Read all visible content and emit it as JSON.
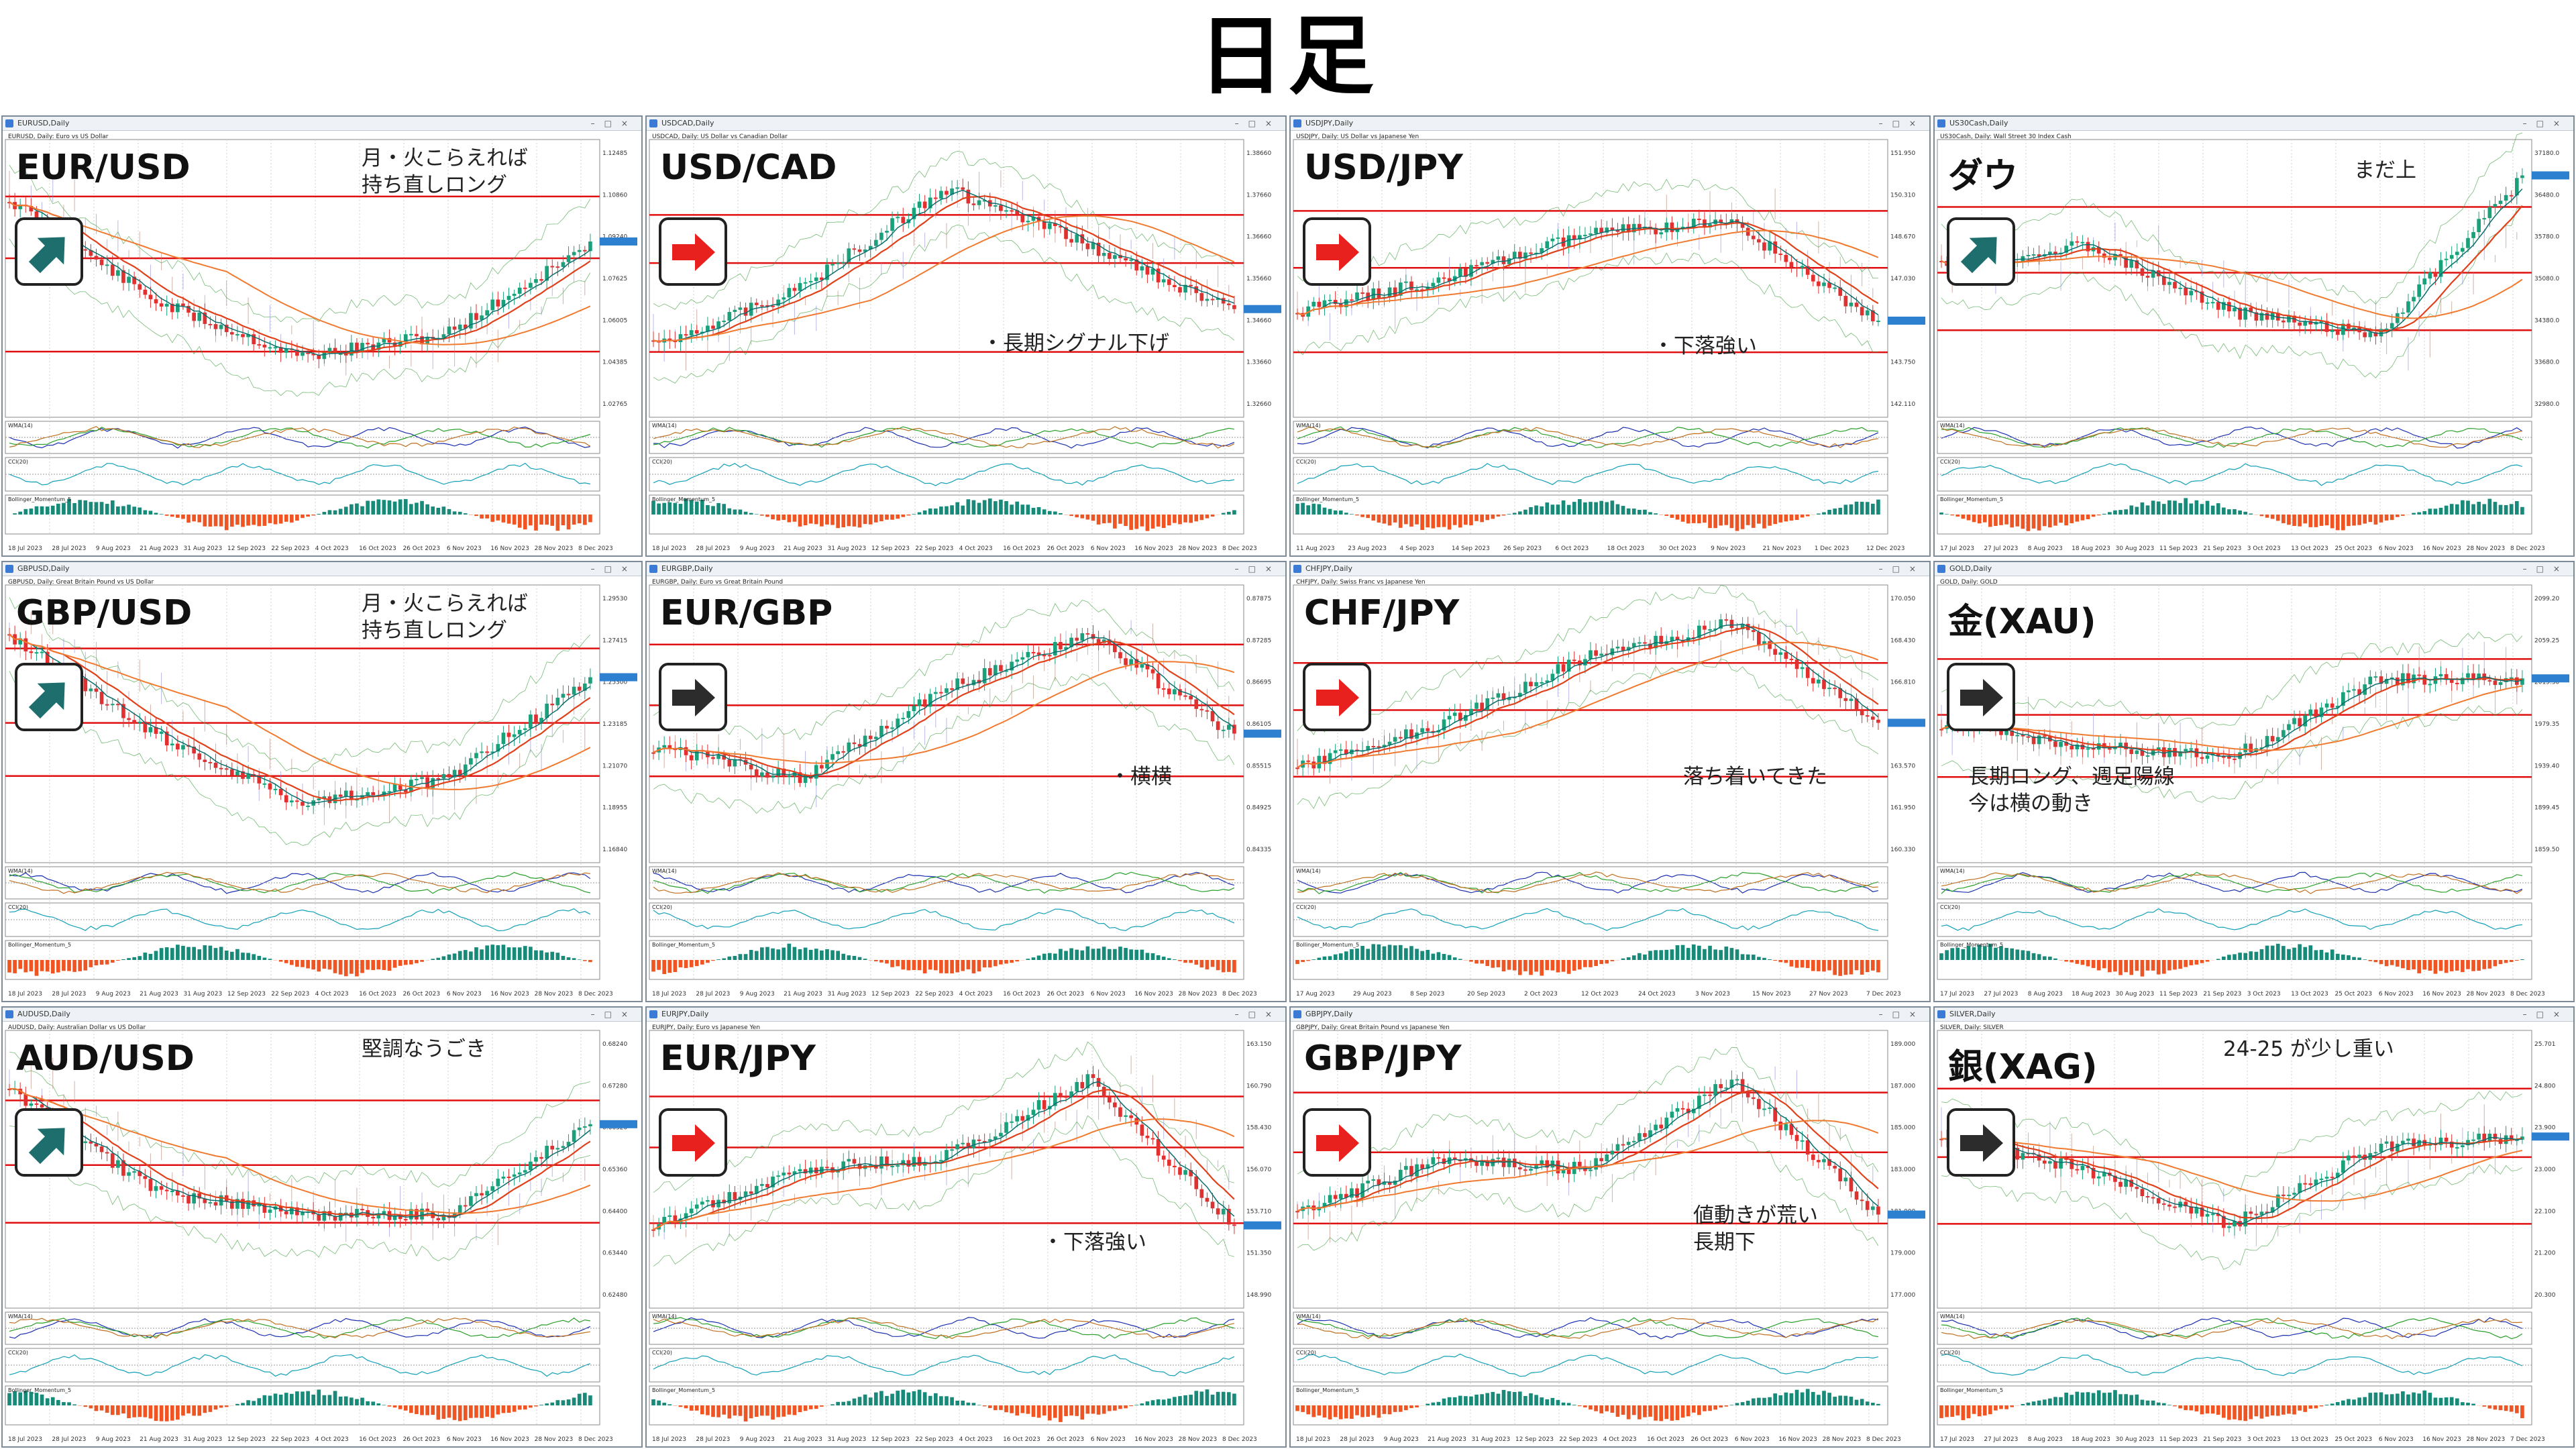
{
  "page_title": "日足",
  "panels": [
    {
      "id": "eurusd",
      "window_title": "EURUSD,Daily",
      "header": "EURUSD, Daily: Euro vs US Dollar",
      "pair": "EUR/USD",
      "trend": "up",
      "note": "月・火こらえれば\n持ち直しロング",
      "dates": [
        "18 Jul 2023",
        "28 Jul 2023",
        "9 Aug 2023",
        "21 Aug 2023",
        "31 Aug 2023",
        "12 Sep 2023",
        "22 Sep 2023",
        "4 Oct 2023",
        "16 Oct 2023",
        "26 Oct 2023",
        "6 Nov 2023",
        "16 Nov 2023",
        "28 Nov 2023",
        "8 Dec 2023"
      ],
      "prices": [
        "1.12485",
        "1.10860",
        "1.09240",
        "1.07625",
        "1.06005",
        "1.04385",
        "1.02765"
      ]
    },
    {
      "id": "usdcad",
      "window_title": "USDCAD,Daily",
      "header": "USDCAD, Daily: US Dollar vs Canadian Dollar",
      "pair": "USD/CAD",
      "trend": "down",
      "note": "・長期シグナル下げ",
      "dates": [
        "18 Jul 2023",
        "28 Jul 2023",
        "9 Aug 2023",
        "21 Aug 2023",
        "31 Aug 2023",
        "12 Sep 2023",
        "22 Sep 2023",
        "4 Oct 2023",
        "16 Oct 2023",
        "26 Oct 2023",
        "6 Nov 2023",
        "16 Nov 2023",
        "28 Nov 2023",
        "8 Dec 2023"
      ],
      "prices": [
        "1.38660",
        "1.37660",
        "1.36660",
        "1.35660",
        "1.34660",
        "1.33660",
        "1.32660"
      ]
    },
    {
      "id": "usdjpy",
      "window_title": "USDJPY,Daily",
      "header": "USDJPY, Daily: US Dollar vs Japanese Yen",
      "pair": "USD/JPY",
      "trend": "down",
      "note": "・下落強い",
      "dates": [
        "11 Aug 2023",
        "23 Aug 2023",
        "4 Sep 2023",
        "14 Sep 2023",
        "26 Sep 2023",
        "6 Oct 2023",
        "18 Oct 2023",
        "30 Oct 2023",
        "9 Nov 2023",
        "21 Nov 2023",
        "1 Dec 2023",
        "12 Dec 2023"
      ],
      "prices": [
        "151.950",
        "150.310",
        "148.670",
        "147.030",
        "145.390",
        "143.750",
        "142.110"
      ]
    },
    {
      "id": "us30",
      "window_title": "US30Cash,Daily",
      "header": "US30Cash, Daily: Wall Street 30 Index Cash",
      "pair": "ダウ",
      "trend": "up",
      "note": "まだ上",
      "dates": [
        "17 Jul 2023",
        "27 Jul 2023",
        "8 Aug 2023",
        "18 Aug 2023",
        "30 Aug 2023",
        "11 Sep 2023",
        "21 Sep 2023",
        "3 Oct 2023",
        "13 Oct 2023",
        "25 Oct 2023",
        "6 Nov 2023",
        "16 Nov 2023",
        "28 Nov 2023",
        "8 Dec 2023"
      ],
      "prices": [
        "37180.0",
        "36480.0",
        "35780.0",
        "35080.0",
        "34380.0",
        "33680.0",
        "32980.0"
      ]
    },
    {
      "id": "gbpusd",
      "window_title": "GBPUSD,Daily",
      "header": "GBPUSD, Daily: Great Britain Pound vs US Dollar",
      "pair": "GBP/USD",
      "trend": "up",
      "note": "月・火こらえれば\n持ち直しロング",
      "dates": [
        "18 Jul 2023",
        "28 Jul 2023",
        "9 Aug 2023",
        "21 Aug 2023",
        "31 Aug 2023",
        "12 Sep 2023",
        "22 Sep 2023",
        "4 Oct 2023",
        "16 Oct 2023",
        "26 Oct 2023",
        "6 Nov 2023",
        "16 Nov 2023",
        "28 Nov 2023",
        "8 Dec 2023"
      ],
      "prices": [
        "1.29530",
        "1.27415",
        "1.25300",
        "1.23185",
        "1.21070",
        "1.18955",
        "1.16840"
      ]
    },
    {
      "id": "eurgbp",
      "window_title": "EURGBP,Daily",
      "header": "EURGBP, Daily: Euro vs Great Britain Pound",
      "pair": "EUR/GBP",
      "trend": "flat",
      "note": "・横横",
      "dates": [
        "18 Jul 2023",
        "28 Jul 2023",
        "9 Aug 2023",
        "21 Aug 2023",
        "31 Aug 2023",
        "12 Sep 2023",
        "22 Sep 2023",
        "4 Oct 2023",
        "16 Oct 2023",
        "26 Oct 2023",
        "6 Nov 2023",
        "16 Nov 2023",
        "28 Nov 2023",
        "8 Dec 2023"
      ],
      "prices": [
        "0.87875",
        "0.87285",
        "0.86695",
        "0.86105",
        "0.85515",
        "0.84925",
        "0.84335"
      ]
    },
    {
      "id": "chfjpy",
      "window_title": "CHFJPY,Daily",
      "header": "CHFJPY, Daily: Swiss Franc vs Japanese Yen",
      "pair": "CHF/JPY",
      "trend": "down",
      "note": "落ち着いてきた",
      "dates": [
        "17 Aug 2023",
        "29 Aug 2023",
        "8 Sep 2023",
        "20 Sep 2023",
        "2 Oct 2023",
        "12 Oct 2023",
        "24 Oct 2023",
        "3 Nov 2023",
        "15 Nov 2023",
        "27 Nov 2023",
        "7 Dec 2023"
      ],
      "prices": [
        "170.050",
        "168.430",
        "166.810",
        "165.190",
        "163.570",
        "161.950",
        "160.330"
      ]
    },
    {
      "id": "gold",
      "window_title": "GOLD,Daily",
      "header": "GOLD, Daily: GOLD",
      "pair": "金(XAU)",
      "trend": "flat",
      "note": "長期ロング、週足陽線\n今は横の動き",
      "dates": [
        "17 Jul 2023",
        "27 Jul 2023",
        "8 Aug 2023",
        "18 Aug 2023",
        "30 Aug 2023",
        "11 Sep 2023",
        "21 Sep 2023",
        "3 Oct 2023",
        "13 Oct 2023",
        "25 Oct 2023",
        "6 Nov 2023",
        "16 Nov 2023",
        "28 Nov 2023",
        "8 Dec 2023"
      ],
      "prices": [
        "2099.20",
        "2059.25",
        "2019.30",
        "1979.35",
        "1939.40",
        "1899.45",
        "1859.50"
      ]
    },
    {
      "id": "audusd",
      "window_title": "AUDUSD,Daily",
      "header": "AUDUSD, Daily: Australian Dollar vs US Dollar",
      "pair": "AUD/USD",
      "trend": "up",
      "note": "堅調なうごき",
      "dates": [
        "18 Jul 2023",
        "28 Jul 2023",
        "9 Aug 2023",
        "21 Aug 2023",
        "31 Aug 2023",
        "12 Sep 2023",
        "22 Sep 2023",
        "4 Oct 2023",
        "16 Oct 2023",
        "26 Oct 2023",
        "6 Nov 2023",
        "16 Nov 2023",
        "28 Nov 2023",
        "8 Dec 2023"
      ],
      "prices": [
        "0.68240",
        "0.67280",
        "0.66320",
        "0.65360",
        "0.64400",
        "0.63440",
        "0.62480"
      ]
    },
    {
      "id": "eurjpy",
      "window_title": "EURJPY,Daily",
      "header": "EURJPY, Daily: Euro vs Japanese Yen",
      "pair": "EUR/JPY",
      "trend": "down",
      "note": "・下落強い",
      "dates": [
        "18 Jul 2023",
        "28 Jul 2023",
        "9 Aug 2023",
        "21 Aug 2023",
        "31 Aug 2023",
        "12 Sep 2023",
        "22 Sep 2023",
        "4 Oct 2023",
        "16 Oct 2023",
        "26 Oct 2023",
        "6 Nov 2023",
        "16 Nov 2023",
        "28 Nov 2023",
        "8 Dec 2023"
      ],
      "prices": [
        "163.150",
        "160.790",
        "158.430",
        "156.070",
        "153.710",
        "151.350",
        "148.990"
      ]
    },
    {
      "id": "gbpjpy",
      "window_title": "GBPJPY,Daily",
      "header": "GBPJPY, Daily: Great Britain Pound vs Japanese Yen",
      "pair": "GBP/JPY",
      "trend": "down",
      "note": "値動きが荒い\n長期下",
      "dates": [
        "18 Jul 2023",
        "28 Jul 2023",
        "9 Aug 2023",
        "21 Aug 2023",
        "31 Aug 2023",
        "12 Sep 2023",
        "22 Sep 2023",
        "4 Oct 2023",
        "16 Oct 2023",
        "26 Oct 2023",
        "6 Nov 2023",
        "16 Nov 2023",
        "28 Nov 2023",
        "8 Dec 2023"
      ],
      "prices": [
        "189.000",
        "187.000",
        "185.000",
        "183.000",
        "181.000",
        "179.000",
        "177.000"
      ]
    },
    {
      "id": "silver",
      "window_title": "SILVER,Daily",
      "header": "SILVER, Daily: SILVER",
      "pair": "銀(XAG)",
      "trend": "flat",
      "note": "24-25 が少し重い",
      "dates": [
        "17 Jul 2023",
        "27 Jul 2023",
        "8 Aug 2023",
        "18 Aug 2023",
        "30 Aug 2023",
        "11 Sep 2023",
        "21 Sep 2023",
        "3 Oct 2023",
        "13 Oct 2023",
        "25 Oct 2023",
        "6 Nov 2023",
        "16 Nov 2023",
        "28 Nov 2023",
        "7 Dec 2023"
      ],
      "prices": [
        "25.701",
        "24.800",
        "23.900",
        "23.000",
        "22.100",
        "21.200",
        "20.300"
      ]
    }
  ],
  "trend_colors": {
    "up": "#1e6e6e",
    "down": "#e8201e",
    "flat": "#2c2c2c"
  },
  "ind_label_1": "WMA(14)",
  "ind_label_2": "CCI(20)",
  "ind_label_3": "Bollinger_Momentum_5"
}
